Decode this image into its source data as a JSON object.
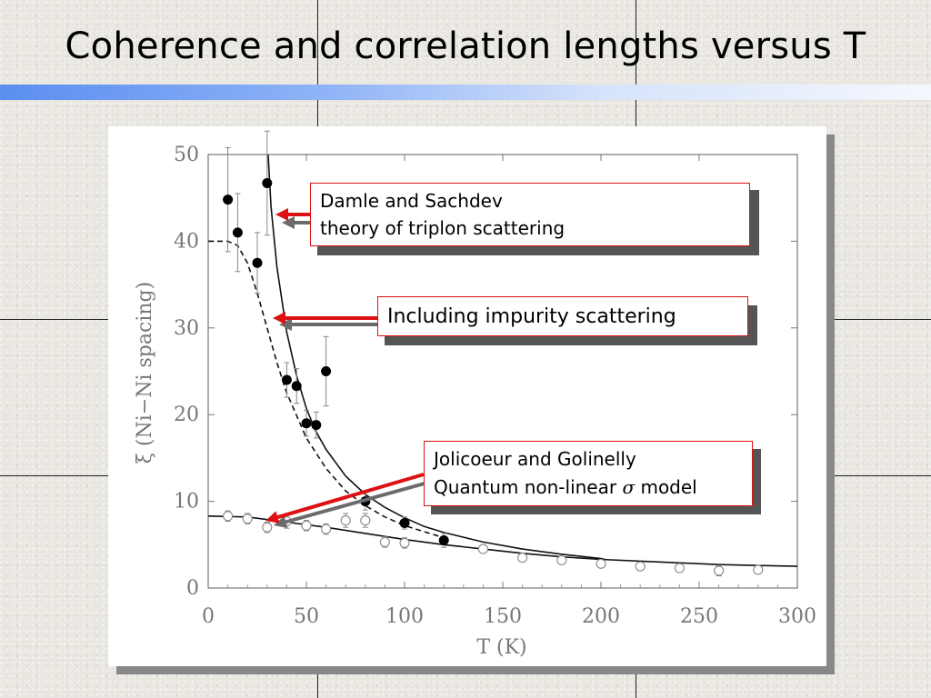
{
  "slide": {
    "title": "Coherence and correlation lengths versus T"
  },
  "callouts": {
    "damle_line1": "Damle and Sachdev",
    "damle_line2": "theory of triplon scattering",
    "impurity": "Including impurity scattering",
    "jolicoeur_line1": "Jolicoeur and Golinelly",
    "jolicoeur_line2_a": "Quantum non-linear ",
    "jolicoeur_sigma": "σ",
    "jolicoeur_line2_b": " model"
  },
  "colors": {
    "arrow_red": "#dd1111",
    "arrow_gray": "#6b6b6b",
    "title_bar": "#5b8ef0"
  },
  "chart_data": {
    "type": "scatter",
    "xlabel": "T (K)",
    "ylabel": "ξ (Ni−Ni spacing)",
    "xlim": [
      0,
      300
    ],
    "ylim": [
      0,
      50
    ],
    "x_ticks": [
      "0",
      "50",
      "100",
      "150",
      "200",
      "250",
      "300"
    ],
    "y_ticks": [
      "0",
      "10",
      "20",
      "30",
      "40",
      "50"
    ],
    "series": [
      {
        "marker": "filled-circle",
        "points": [
          {
            "x": 10,
            "y": 44.8,
            "err": 6
          },
          {
            "x": 15,
            "y": 41,
            "err": 4.5
          },
          {
            "x": 25,
            "y": 37.5,
            "err": 3.5
          },
          {
            "x": 30,
            "y": 46.7,
            "err": 6
          },
          {
            "x": 40,
            "y": 24,
            "err": 2
          },
          {
            "x": 45,
            "y": 23.3,
            "err": 2
          },
          {
            "x": 50,
            "y": 19,
            "err": 1.5
          },
          {
            "x": 55,
            "y": 18.8,
            "err": 1.5
          },
          {
            "x": 60,
            "y": 25,
            "err": 4
          },
          {
            "x": 80,
            "y": 10,
            "err": 1
          },
          {
            "x": 100,
            "y": 7.5,
            "err": 0.7
          },
          {
            "x": 120,
            "y": 5.5,
            "err": 0.8
          }
        ]
      },
      {
        "marker": "open-circle",
        "points": [
          {
            "x": 10,
            "y": 8.3,
            "err": 0.6
          },
          {
            "x": 20,
            "y": 8,
            "err": 0.6
          },
          {
            "x": 30,
            "y": 7,
            "err": 0.6
          },
          {
            "x": 40,
            "y": 7.7,
            "err": 0.8
          },
          {
            "x": 50,
            "y": 7.2,
            "err": 0.6
          },
          {
            "x": 60,
            "y": 6.8,
            "err": 0.6
          },
          {
            "x": 70,
            "y": 7.8,
            "err": 0.8
          },
          {
            "x": 80,
            "y": 7.8,
            "err": 0.8
          },
          {
            "x": 90,
            "y": 5.3,
            "err": 0.6
          },
          {
            "x": 100,
            "y": 5.2,
            "err": 0.6
          },
          {
            "x": 140,
            "y": 4.5,
            "err": 0.4
          },
          {
            "x": 160,
            "y": 3.5,
            "err": 0.4
          },
          {
            "x": 180,
            "y": 3.2,
            "err": 0.4
          },
          {
            "x": 200,
            "y": 2.8,
            "err": 0.4
          },
          {
            "x": 220,
            "y": 2.5,
            "err": 0.4
          },
          {
            "x": 240,
            "y": 2.3,
            "err": 0.4
          },
          {
            "x": 260,
            "y": 2,
            "err": 0.6
          },
          {
            "x": 280,
            "y": 2.1,
            "err": 0.4
          }
        ]
      }
    ],
    "curves": [
      {
        "style": "solid",
        "points": [
          [
            30.5,
            50
          ],
          [
            32,
            44
          ],
          [
            35,
            37
          ],
          [
            40,
            29.5
          ],
          [
            45,
            24.5
          ],
          [
            50,
            20.7
          ],
          [
            55,
            18
          ],
          [
            60,
            16
          ],
          [
            70,
            12.9
          ],
          [
            80,
            10.8
          ],
          [
            90,
            9.3
          ],
          [
            100,
            8.1
          ],
          [
            110,
            7.1
          ],
          [
            120,
            6.4
          ],
          [
            140,
            5.3
          ],
          [
            160,
            4.5
          ],
          [
            180,
            3.9
          ],
          [
            200,
            3.4
          ],
          [
            202,
            3.3
          ]
        ]
      },
      {
        "style": "dashed",
        "points": [
          [
            0,
            40
          ],
          [
            10,
            40
          ],
          [
            15,
            39.5
          ],
          [
            20,
            37.5
          ],
          [
            25,
            34
          ],
          [
            30,
            30
          ],
          [
            35,
            26
          ],
          [
            40,
            22.5
          ],
          [
            50,
            17.3
          ],
          [
            60,
            13.8
          ],
          [
            70,
            11.2
          ],
          [
            80,
            9.5
          ],
          [
            90,
            8.2
          ],
          [
            100,
            7.2
          ],
          [
            110,
            6.5
          ],
          [
            120,
            5.8
          ]
        ]
      },
      {
        "style": "solid",
        "points": [
          [
            0,
            8.3
          ],
          [
            20,
            8.2
          ],
          [
            40,
            7.6
          ],
          [
            60,
            7
          ],
          [
            80,
            6.3
          ],
          [
            100,
            5.6
          ],
          [
            120,
            5
          ],
          [
            140,
            4.5
          ],
          [
            160,
            4
          ],
          [
            180,
            3.6
          ],
          [
            200,
            3.3
          ],
          [
            220,
            3.1
          ],
          [
            240,
            2.9
          ],
          [
            260,
            2.7
          ],
          [
            280,
            2.6
          ],
          [
            300,
            2.5
          ]
        ]
      }
    ]
  }
}
